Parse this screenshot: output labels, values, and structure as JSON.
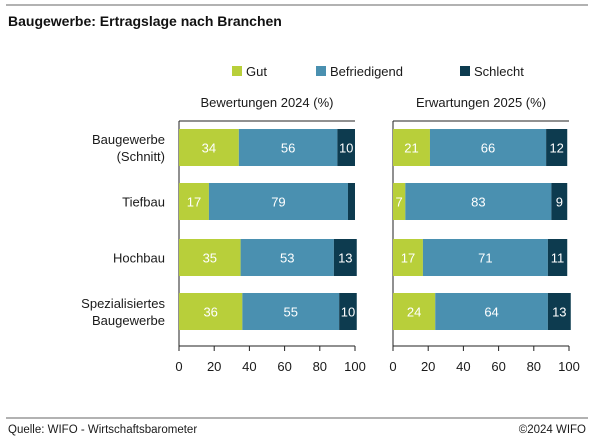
{
  "title": "Baugewerbe: Ertragslage nach Branchen",
  "source": "Quelle: WIFO - Wirtschaftsbarometer",
  "copyright": "©2024 WIFO",
  "colors": {
    "gut": "#b8cf3a",
    "befriedigend": "#4a90b0",
    "schlecht": "#0d3b4f",
    "rule": "#555555",
    "axis": "#222222"
  },
  "chart_data": [
    {
      "type": "bar",
      "orientation": "horizontal",
      "stacked": true,
      "title": "Bewertungen 2024 (%)",
      "categories": [
        "Baugewerbe (Schnitt)",
        "Tiefbau",
        "Hochbau",
        "Spezialisiertes Baugewerbe"
      ],
      "series": [
        {
          "name": "Gut",
          "values": [
            34,
            17,
            35,
            36
          ]
        },
        {
          "name": "Befriedigend",
          "values": [
            56,
            79,
            53,
            55
          ]
        },
        {
          "name": "Schlecht",
          "values": [
            10,
            4,
            13,
            10
          ]
        }
      ],
      "data_labels": [
        [
          "34",
          "56",
          "10"
        ],
        [
          "17",
          "79",
          ""
        ],
        [
          "35",
          "53",
          "13"
        ],
        [
          "36",
          "55",
          "10"
        ]
      ],
      "xlim": [
        0,
        100
      ],
      "xticks": [
        0,
        20,
        40,
        60,
        80,
        100
      ],
      "grid": false,
      "legend": "top"
    },
    {
      "type": "bar",
      "orientation": "horizontal",
      "stacked": true,
      "title": "Erwartungen 2025 (%)",
      "categories": [
        "Baugewerbe (Schnitt)",
        "Tiefbau",
        "Hochbau",
        "Spezialisiertes Baugewerbe"
      ],
      "series": [
        {
          "name": "Gut",
          "values": [
            21,
            7,
            17,
            24
          ]
        },
        {
          "name": "Befriedigend",
          "values": [
            66,
            83,
            71,
            64
          ]
        },
        {
          "name": "Schlecht",
          "values": [
            12,
            9,
            11,
            13
          ]
        }
      ],
      "data_labels": [
        [
          "21",
          "66",
          "12"
        ],
        [
          "7",
          "83",
          "9"
        ],
        [
          "17",
          "71",
          "11"
        ],
        [
          "24",
          "64",
          "13"
        ]
      ],
      "xlim": [
        0,
        100
      ],
      "xticks": [
        0,
        20,
        40,
        60,
        80,
        100
      ],
      "grid": false,
      "legend": "top"
    }
  ],
  "category_lines": [
    [
      "Baugewerbe",
      "(Schnitt)"
    ],
    [
      "Tiefbau"
    ],
    [
      "Hochbau"
    ],
    [
      "Spezialisiertes",
      "Baugewerbe"
    ]
  ],
  "legend": [
    {
      "label": "Gut",
      "color_key": "gut"
    },
    {
      "label": "Befriedigend",
      "color_key": "befriedigend"
    },
    {
      "label": "Schlecht",
      "color_key": "schlecht"
    }
  ]
}
